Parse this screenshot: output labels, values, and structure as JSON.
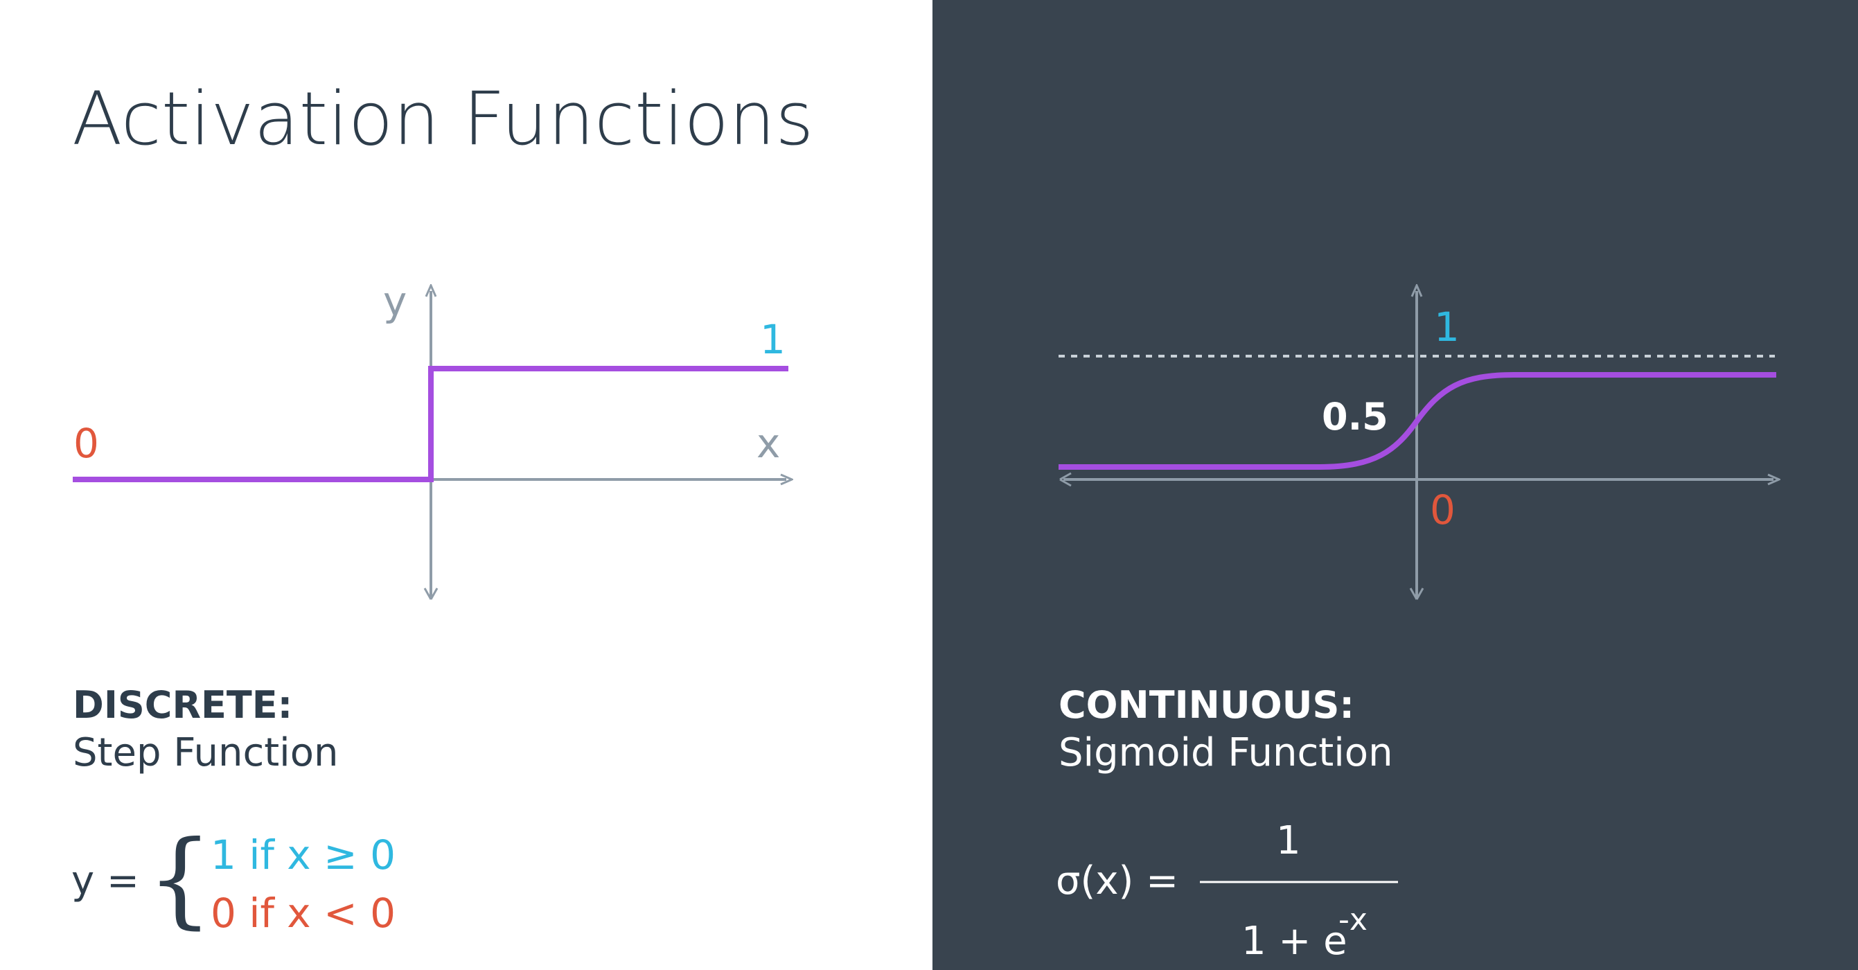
{
  "title": "Activation Functions",
  "colors": {
    "left_bg": "#ffffff",
    "right_bg": "#39444f",
    "curve": "#a54ee0",
    "axis_light": "#8f9ca8",
    "axis_dark": "#8f9ca8",
    "cyan": "#2fb8e0",
    "red": "#e1573c",
    "text_dark": "#2e3d4b",
    "text_light": "#ffffff"
  },
  "step": {
    "y_axis_label": "y",
    "x_axis_label": "x",
    "label_one": "1",
    "label_zero": "0",
    "category": "DISCRETE:",
    "name": "Step Function",
    "formula_lhs": "y =",
    "brace": "{",
    "case_one": "1 if x  ≥ 0",
    "case_zero": "0 if x < 0"
  },
  "sigmoid": {
    "label_one": "1",
    "label_half": "0.5",
    "label_zero": "0",
    "category": "CONTINUOUS:",
    "name": "Sigmoid Function",
    "formula_lhs": "σ(x) =",
    "numerator": "1",
    "denominator_base": "1 + e",
    "denominator_exp": "-x"
  }
}
